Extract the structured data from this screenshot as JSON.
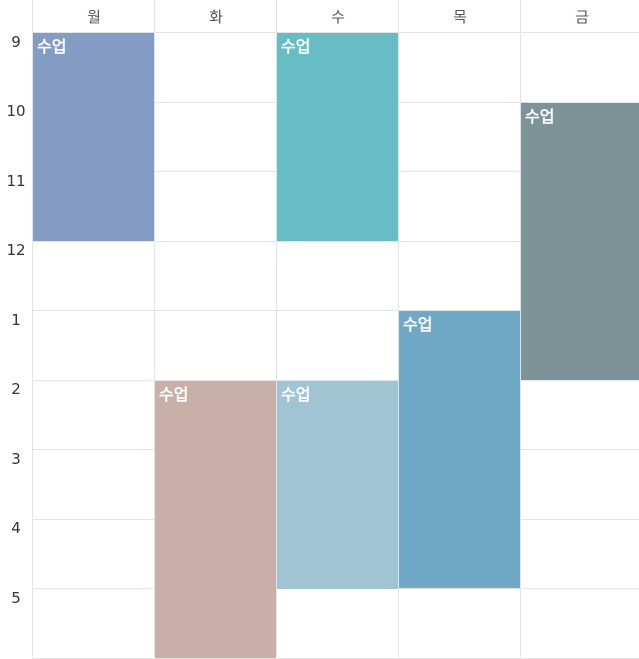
{
  "days": [
    "월",
    "화",
    "수",
    "목",
    "금"
  ],
  "hours": [
    "9",
    "10",
    "11",
    "12",
    "1",
    "2",
    "3",
    "4",
    "5"
  ],
  "events": [
    {
      "title": "수업",
      "day": 0,
      "start_hour": 9,
      "end_hour": 12,
      "color": "#849CC4"
    },
    {
      "title": "수업",
      "day": 1,
      "start_hour": 14,
      "end_hour": 18,
      "color": "#C8B0A8"
    },
    {
      "title": "수업",
      "day": 2,
      "start_hour": 9,
      "end_hour": 12,
      "color": "#68BCC4"
    },
    {
      "title": "수업",
      "day": 2,
      "start_hour": 14,
      "end_hour": 17,
      "color": "#A0C4D4"
    },
    {
      "title": "수업",
      "day": 3,
      "start_hour": 13,
      "end_hour": 17,
      "color": "#70A8C8"
    },
    {
      "title": "수업",
      "day": 4,
      "start_hour": 10,
      "end_hour": 14,
      "color": "#7C9498"
    }
  ]
}
